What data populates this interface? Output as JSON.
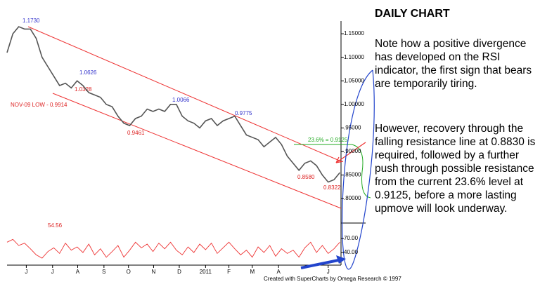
{
  "chart_data": [
    {
      "type": "line",
      "x": [
        0,
        1,
        2,
        3,
        4,
        5,
        6,
        7,
        8,
        9,
        10,
        11,
        12,
        13,
        14,
        15,
        16,
        17,
        18,
        19,
        20,
        21,
        22,
        23,
        24,
        25,
        26,
        27,
        28,
        29,
        30,
        31,
        32,
        33,
        34,
        35,
        36,
        37,
        38,
        39,
        40,
        41,
        42,
        43,
        44,
        45,
        46,
        47,
        48,
        49,
        50,
        51,
        52,
        53,
        54,
        55,
        56,
        57
      ],
      "series": [
        {
          "color": "#555",
          "values": [
            1.11,
            1.15,
            1.165,
            1.16,
            1.16,
            1.14,
            1.1,
            1.08,
            1.06,
            1.04,
            1.045,
            1.035,
            1.05,
            1.04,
            1.025,
            1.02,
            1.015,
            1.0,
            0.995,
            0.975,
            0.96,
            0.955,
            0.97,
            0.975,
            0.99,
            0.985,
            0.99,
            0.985,
            1.0,
            1.0,
            0.975,
            0.965,
            0.96,
            0.95,
            0.965,
            0.97,
            0.955,
            0.965,
            0.97,
            0.975,
            0.955,
            0.935,
            0.93,
            0.925,
            0.91,
            0.92,
            0.93,
            0.915,
            0.89,
            0.875,
            0.86,
            0.875,
            0.88,
            0.87,
            0.85,
            0.835,
            0.84,
            0.855
          ]
        }
      ],
      "xlim": [
        0,
        57.2
      ],
      "ylim": [
        0.748,
        1.177
      ],
      "xticks": [
        {
          "value": 3.3,
          "label": "J"
        },
        {
          "value": 7.8,
          "label": "J"
        },
        {
          "value": 12.1,
          "label": "A"
        },
        {
          "value": 16.6,
          "label": "S"
        },
        {
          "value": 20.8,
          "label": "O"
        },
        {
          "value": 25.1,
          "label": "N"
        },
        {
          "value": 29.5,
          "label": "D"
        },
        {
          "value": 34,
          "label": "2011"
        },
        {
          "value": 38,
          "label": "F"
        },
        {
          "value": 42,
          "label": "M"
        },
        {
          "value": 46.5,
          "label": "A"
        },
        {
          "value": 55,
          "label": "J"
        }
      ],
      "yticks": [
        {
          "value": 1.15,
          "label": "1.15000"
        },
        {
          "value": 1.1,
          "label": "1.10000"
        },
        {
          "value": 1.05,
          "label": "1.05000"
        },
        {
          "value": 1.0,
          "label": "1.00000"
        },
        {
          "value": 0.95,
          "label": ".95000"
        },
        {
          "value": 0.9,
          "label": ".90000"
        },
        {
          "value": 0.85,
          "label": ".85000"
        },
        {
          "value": 0.8,
          "label": ".80000"
        }
      ]
    },
    {
      "type": "line",
      "x": [
        0,
        1,
        2,
        3,
        4,
        5,
        6,
        7,
        8,
        9,
        10,
        11,
        12,
        13,
        14,
        15,
        16,
        17,
        18,
        19,
        20,
        21,
        22,
        23,
        24,
        25,
        26,
        27,
        28,
        29,
        30,
        31,
        32,
        33,
        34,
        35,
        36,
        37,
        38,
        39,
        40,
        41,
        42,
        43,
        44,
        45,
        46,
        47,
        48,
        49,
        50,
        51,
        52,
        53,
        54,
        55,
        56,
        57
      ],
      "series": [
        {
          "color": "#e33",
          "values": [
            62,
            68,
            55,
            60,
            48,
            35,
            28,
            42,
            50,
            38,
            60,
            45,
            52,
            40,
            58,
            35,
            48,
            30,
            42,
            55,
            30,
            45,
            62,
            50,
            58,
            42,
            60,
            48,
            62,
            45,
            35,
            52,
            40,
            58,
            46,
            60,
            38,
            50,
            62,
            48,
            35,
            45,
            30,
            52,
            40,
            55,
            32,
            48,
            38,
            45,
            30,
            50,
            62,
            40,
            55,
            38,
            48,
            62
          ]
        }
      ],
      "xlim": [
        0,
        57.2
      ],
      "ylim": [
        13,
        103
      ],
      "yticks": [
        {
          "value": 70,
          "label": "70.00"
        },
        {
          "value": 40,
          "label": "40.00"
        }
      ]
    }
  ],
  "annotations": [
    "1.1730",
    "1.0626",
    "1.0328",
    "NOV-09 LOW - 0.9914",
    "1.0066",
    "0.9775",
    "0.9461",
    "23.6% = 0.9125",
    "0.8580",
    "0.8322",
    "54.56",
    "Created with SuperCharts by Omega Research © 1997"
  ],
  "notes": {
    "title": "DAILY CHART",
    "paragraphs": [
      "Note how a positive divergence has developed on the RSI indicator, the first sign that bears are temporarily tiring.",
      "However, recovery through the falling resistance line at 0.8830 is required, followed by a further push through possible resistance from the current 23.6% level at 0.9125, before a more lasting upmove will look underway."
    ]
  }
}
